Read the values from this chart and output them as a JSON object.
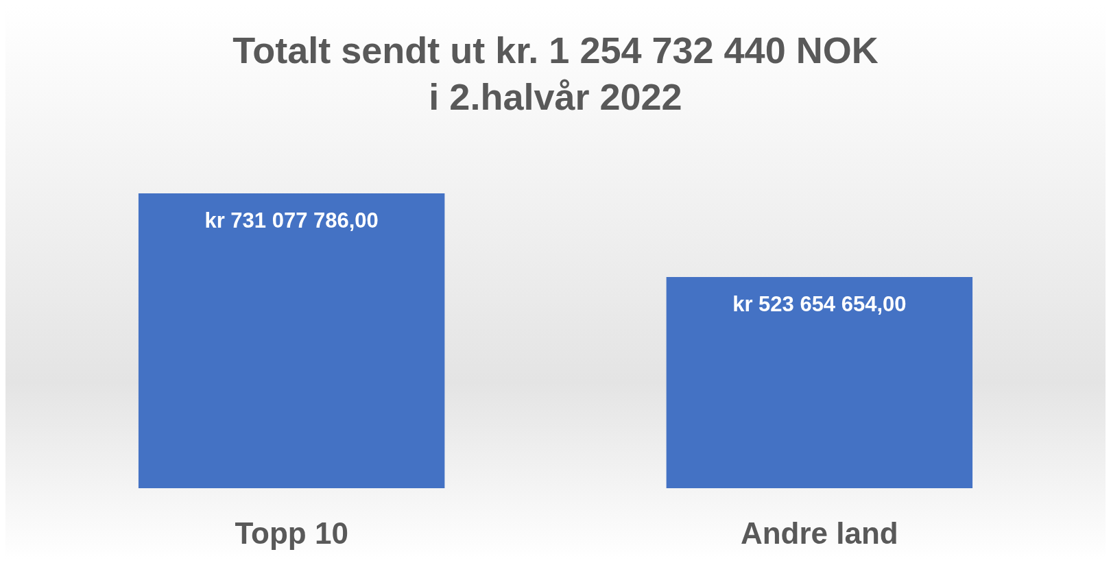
{
  "chart_data": {
    "type": "bar",
    "title": "Totalt sendt ut kr. 1 254 732 440 NOK\ni 2.halvår 2022",
    "categories": [
      "Topp 10",
      "Andre land"
    ],
    "values": [
      731077786,
      523654654
    ],
    "value_labels": [
      "kr 731 077 786,00",
      "kr 523 654 654,00"
    ],
    "color": "#4472c4"
  }
}
